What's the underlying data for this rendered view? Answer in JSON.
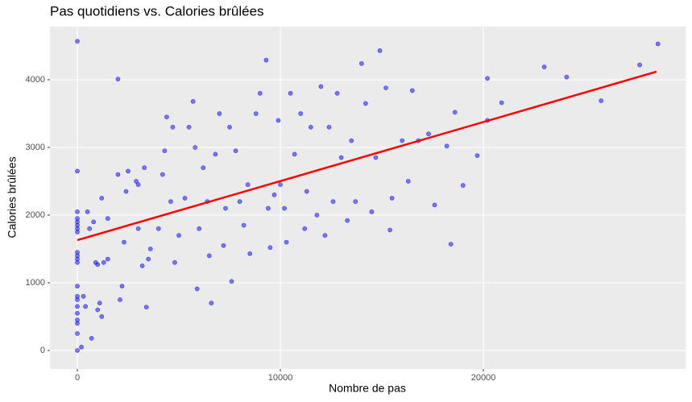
{
  "chart_data": {
    "type": "scatter",
    "title": "Pas quotidiens vs. Calories brûlées",
    "x_label": "Nombre de pas",
    "y_label": "Calories brûlées",
    "xlim": [
      -1350,
      29960
    ],
    "ylim": [
      -274,
      4786
    ],
    "xticks": [
      0,
      10000,
      20000
    ],
    "yticks": [
      0,
      1000,
      2000,
      3000,
      4000
    ],
    "grid": true,
    "series": [
      {
        "color": "#0000ff",
        "x": [
          0,
          0,
          0,
          0,
          0,
          0,
          0,
          0,
          0,
          0,
          0,
          0,
          0,
          0,
          0,
          0,
          0,
          0,
          0,
          0,
          0,
          200,
          300,
          400,
          500,
          600,
          700,
          1000,
          1100,
          1200,
          900,
          1000,
          1300,
          1500,
          800,
          1200,
          1500,
          2000,
          2100,
          2200,
          2300,
          2000,
          2500,
          2400,
          2900,
          3000,
          3400,
          3200,
          3500,
          3000,
          3300,
          3600,
          4000,
          4200,
          4300,
          4400,
          4700,
          4800,
          4600,
          5000,
          5300,
          5500,
          5700,
          5800,
          5900,
          6000,
          6200,
          6400,
          6500,
          6600,
          6800,
          7000,
          7200,
          7300,
          7500,
          7600,
          7800,
          8000,
          8200,
          8400,
          8500,
          8800,
          9000,
          9300,
          9400,
          9500,
          9700,
          9900,
          10000,
          10200,
          10300,
          10500,
          10700,
          11000,
          11200,
          11300,
          11500,
          11800,
          12000,
          12200,
          12400,
          12600,
          12800,
          13000,
          13300,
          13500,
          13700,
          14000,
          14200,
          14500,
          14700,
          14900,
          15200,
          15500,
          15400,
          16000,
          16300,
          16500,
          16800,
          17300,
          17600,
          18200,
          18400,
          18600,
          19000,
          19700,
          20200,
          20200,
          20900,
          23000,
          24100,
          25800,
          27700,
          28600
        ],
        "values": [
          0,
          250,
          400,
          450,
          550,
          650,
          750,
          800,
          950,
          1300,
          1350,
          1400,
          1450,
          1750,
          1800,
          1850,
          1900,
          1950,
          2050,
          2650,
          4570,
          50,
          800,
          650,
          2050,
          1800,
          180,
          600,
          700,
          500,
          1300,
          1270,
          1300,
          1350,
          1900,
          2250,
          1950,
          4010,
          750,
          950,
          1600,
          2600,
          2650,
          2350,
          2500,
          2450,
          640,
          1250,
          1350,
          1800,
          2700,
          1500,
          1800,
          2600,
          2950,
          3450,
          3300,
          1300,
          2200,
          1700,
          2250,
          3300,
          3680,
          3000,
          910,
          1800,
          2700,
          2200,
          1400,
          700,
          2900,
          3500,
          1550,
          2100,
          3300,
          1020,
          2950,
          2200,
          1850,
          2450,
          1430,
          3500,
          3800,
          4290,
          2100,
          1520,
          2300,
          3400,
          2450,
          2100,
          1600,
          3800,
          2900,
          3500,
          1800,
          2350,
          3300,
          2000,
          3900,
          1700,
          3300,
          2200,
          3800,
          2850,
          1920,
          3100,
          2200,
          4240,
          3650,
          2050,
          2850,
          4430,
          3880,
          2250,
          1780,
          3100,
          2500,
          3840,
          3100,
          3200,
          2150,
          3020,
          1570,
          3520,
          2440,
          2880,
          4020,
          3400,
          3660,
          4190,
          4040,
          3690,
          4220,
          4530
        ]
      }
    ],
    "trend": {
      "color": "#ff0000",
      "x": [
        0,
        28532
      ],
      "values": [
        1630,
        4120
      ]
    }
  }
}
